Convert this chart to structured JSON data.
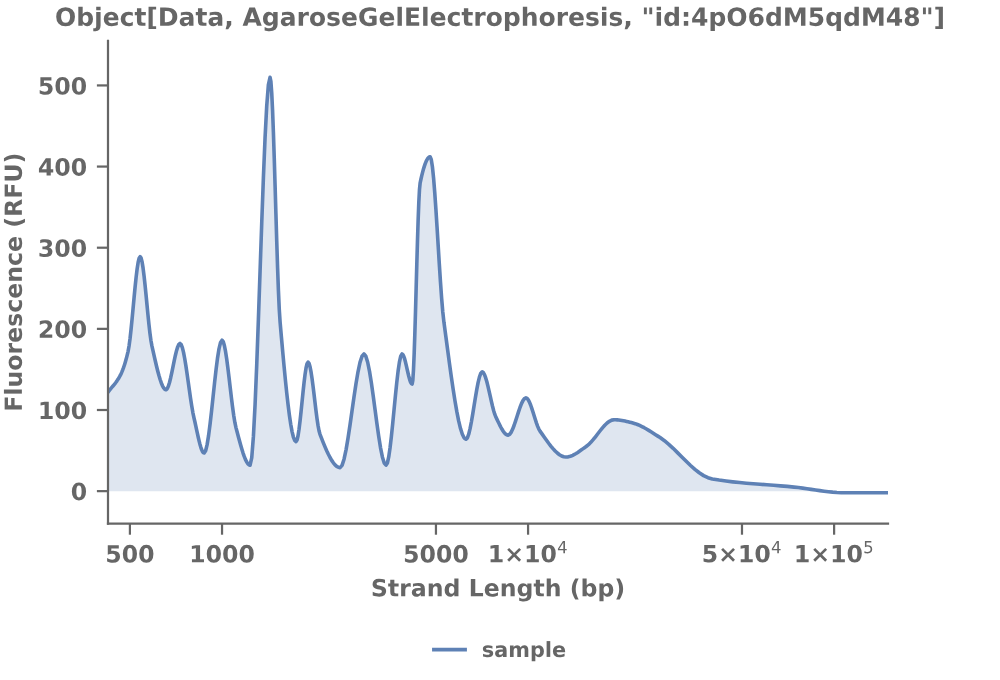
{
  "chart_data": {
    "type": "area",
    "title": "Object[Data, AgaroseGelElectrophoresis, \"id:4pO6dM5qdM48\"]",
    "xlabel": "Strand Length (bp)",
    "ylabel": "Fluorescence (RFU)",
    "log": "x",
    "xlim": [
      424,
      150000
    ],
    "ylim": [
      -40,
      555
    ],
    "xticks": [
      500,
      1000,
      5000,
      {
        "value": 10000,
        "label": "1×10$^{4}$"
      },
      {
        "value": 50000,
        "label": "5×10$^{4}$"
      },
      {
        "value": 100000,
        "label": "1×10$^{5}$"
      }
    ],
    "yticks": [
      0,
      100,
      200,
      300,
      400,
      500
    ],
    "grid": false,
    "legend": "bottom",
    "series": [
      {
        "name": "sample",
        "color": "#5e81b5",
        "x": [
          424,
          464,
          493,
          540,
          590,
          656,
          729,
          810,
          874,
          1000,
          1111,
          1235,
          1435,
          1548,
          1745,
          1910,
          2090,
          2430,
          2910,
          3435,
          3875,
          4180,
          4440,
          4785,
          5310,
          6270,
          7080,
          7855,
          8605,
          9840,
          10940,
          13300,
          15480,
          19100,
          22000,
          27000,
          40000,
          74000,
          109000,
          150000
        ],
        "values": [
          122,
          142,
          172,
          289,
          179,
          125,
          182,
          90,
          47,
          186,
          78,
          32,
          510,
          208,
          61,
          159,
          70,
          29,
          169,
          32,
          169,
          132,
          380,
          412,
          208,
          64,
          147,
          91,
          69,
          115,
          74,
          42,
          55,
          88,
          84,
          66,
          15,
          5,
          -2,
          -2
        ]
      }
    ]
  }
}
